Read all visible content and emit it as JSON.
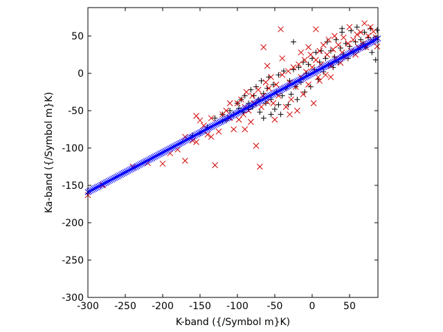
{
  "chart_data": {
    "type": "scatter",
    "title": "",
    "xlabel": "K-band ({/Symbol m}K)",
    "ylabel": "Ka-band ({/Symbol m}K)",
    "xlim": [
      -300,
      88
    ],
    "ylim": [
      -300,
      88
    ],
    "xticks": [
      -300,
      -250,
      -200,
      -150,
      -100,
      -50,
      0,
      50
    ],
    "yticks": [
      -300,
      -250,
      -200,
      -150,
      -100,
      -50,
      0,
      50
    ],
    "xtick_labels": [
      "-300",
      "-250",
      "-200",
      "-150",
      "-100",
      "-50",
      "0",
      "50"
    ],
    "ytick_labels": [
      "-300",
      "-250",
      "-200",
      "-150",
      "-100",
      "-50",
      "0",
      "50"
    ],
    "grid": false,
    "legend": "none",
    "fit": {
      "slope": 0.53,
      "intercept": 0
    },
    "series": [
      {
        "marker": "plus",
        "color": "#000000",
        "points": [
          [
            -160,
            -83
          ],
          [
            -150,
            -80
          ],
          [
            -140,
            -72
          ],
          [
            -120,
            -64
          ],
          [
            -115,
            -63
          ],
          [
            -105,
            -55
          ],
          [
            -100,
            -40
          ],
          [
            -98,
            -47
          ],
          [
            -95,
            -35
          ],
          [
            -92,
            -52
          ],
          [
            -90,
            -30
          ],
          [
            -85,
            -40
          ],
          [
            -82,
            -22
          ],
          [
            -80,
            -45
          ],
          [
            -78,
            -30
          ],
          [
            -75,
            -18
          ],
          [
            -72,
            -35
          ],
          [
            -70,
            -52
          ],
          [
            -68,
            -10
          ],
          [
            -65,
            -27
          ],
          [
            -62,
            -40
          ],
          [
            -60,
            -20
          ],
          [
            -58,
            -5
          ],
          [
            -55,
            -35
          ],
          [
            -52,
            -15
          ],
          [
            -50,
            -48
          ],
          [
            -48,
            -25
          ],
          [
            -45,
            -2
          ],
          [
            -42,
            -55
          ],
          [
            -40,
            -30
          ],
          [
            -38,
            3
          ],
          [
            -35,
            -20
          ],
          [
            -32,
            -42
          ],
          [
            -30,
            -10
          ],
          [
            -28,
            -28
          ],
          [
            -25,
            5
          ],
          [
            -22,
            -18
          ],
          [
            -20,
            -35
          ],
          [
            -18,
            8
          ],
          [
            -15,
            -12
          ],
          [
            -12,
            15
          ],
          [
            -10,
            -25
          ],
          [
            -8,
            0
          ],
          [
            -5,
            12
          ],
          [
            -2,
            -18
          ],
          [
            0,
            20
          ],
          [
            3,
            5
          ],
          [
            5,
            28
          ],
          [
            8,
            -8
          ],
          [
            10,
            15
          ],
          [
            12,
            30
          ],
          [
            15,
            2
          ],
          [
            18,
            20
          ],
          [
            20,
            42
          ],
          [
            22,
            12
          ],
          [
            25,
            30
          ],
          [
            28,
            8
          ],
          [
            30,
            22
          ],
          [
            32,
            45
          ],
          [
            35,
            15
          ],
          [
            38,
            34
          ],
          [
            40,
            55
          ],
          [
            42,
            25
          ],
          [
            45,
            40
          ],
          [
            48,
            20
          ],
          [
            50,
            36
          ],
          [
            52,
            57
          ],
          [
            55,
            28
          ],
          [
            58,
            42
          ],
          [
            60,
            62
          ],
          [
            62,
            32
          ],
          [
            65,
            45
          ],
          [
            68,
            40
          ],
          [
            70,
            55
          ],
          [
            72,
            35
          ],
          [
            75,
            48
          ],
          [
            78,
            60
          ],
          [
            80,
            28
          ],
          [
            82,
            45
          ],
          [
            85,
            18
          ],
          [
            87,
            58
          ],
          [
            -25,
            42
          ],
          [
            40,
            60
          ],
          [
            -110,
            -50
          ],
          [
            -130,
            -60
          ],
          [
            -45,
            -42
          ],
          [
            -120,
            -55
          ],
          [
            -55,
            -55
          ],
          [
            -65,
            -60
          ],
          [
            -85,
            -48
          ]
        ]
      },
      {
        "marker": "cross",
        "color": "#d40000",
        "points": [
          [
            -300,
            -163
          ],
          [
            -280,
            -150
          ],
          [
            -240,
            -125
          ],
          [
            -220,
            -120
          ],
          [
            -200,
            -121
          ],
          [
            -190,
            -107
          ],
          [
            -180,
            -102
          ],
          [
            -170,
            -117
          ],
          [
            -160,
            -90
          ],
          [
            -155,
            -92
          ],
          [
            -155,
            -57
          ],
          [
            -150,
            -63
          ],
          [
            -145,
            -70
          ],
          [
            -140,
            -82
          ],
          [
            -135,
            -60
          ],
          [
            -130,
            -123
          ],
          [
            -125,
            -78
          ],
          [
            -120,
            -55
          ],
          [
            -115,
            -50
          ],
          [
            -110,
            -60
          ],
          [
            -105,
            -75
          ],
          [
            -100,
            -40
          ],
          [
            -98,
            -62
          ],
          [
            -95,
            -35
          ],
          [
            -92,
            -55
          ],
          [
            -90,
            -45
          ],
          [
            -88,
            -25
          ],
          [
            -85,
            -50
          ],
          [
            -82,
            -65
          ],
          [
            -80,
            -30
          ],
          [
            -78,
            -40
          ],
          [
            -75,
            -97
          ],
          [
            -72,
            -22
          ],
          [
            -70,
            -125
          ],
          [
            -68,
            -45
          ],
          [
            -66,
            -30
          ],
          [
            -65,
            35
          ],
          [
            -62,
            -12
          ],
          [
            -60,
            -38
          ],
          [
            -58,
            -20
          ],
          [
            -55,
            -5
          ],
          [
            -52,
            -40
          ],
          [
            -50,
            -62
          ],
          [
            -48,
            -15
          ],
          [
            -45,
            -30
          ],
          [
            -42,
            59
          ],
          [
            -40,
            -2
          ],
          [
            -38,
            -20
          ],
          [
            -35,
            -45
          ],
          [
            -32,
            3
          ],
          [
            -30,
            -12
          ],
          [
            -28,
            -35
          ],
          [
            -25,
            8
          ],
          [
            -22,
            -18
          ],
          [
            -20,
            -50
          ],
          [
            -18,
            12
          ],
          [
            -15,
            -5
          ],
          [
            -12,
            -28
          ],
          [
            -10,
            18
          ],
          [
            -8,
            2
          ],
          [
            -5,
            -15
          ],
          [
            -2,
            25
          ],
          [
            0,
            8
          ],
          [
            2,
            -40
          ],
          [
            5,
            59
          ],
          [
            5,
            18
          ],
          [
            8,
            -5
          ],
          [
            10,
            30
          ],
          [
            12,
            12
          ],
          [
            15,
            38
          ],
          [
            18,
            -2
          ],
          [
            20,
            25
          ],
          [
            22,
            45
          ],
          [
            25,
            10
          ],
          [
            28,
            32
          ],
          [
            30,
            50
          ],
          [
            32,
            20
          ],
          [
            35,
            38
          ],
          [
            38,
            14
          ],
          [
            40,
            28
          ],
          [
            42,
            48
          ],
          [
            45,
            22
          ],
          [
            48,
            40
          ],
          [
            50,
            62
          ],
          [
            52,
            30
          ],
          [
            55,
            45
          ],
          [
            58,
            25
          ],
          [
            60,
            52
          ],
          [
            62,
            35
          ],
          [
            65,
            55
          ],
          [
            68,
            40
          ],
          [
            70,
            67
          ],
          [
            72,
            35
          ],
          [
            75,
            50
          ],
          [
            78,
            62
          ],
          [
            80,
            42
          ],
          [
            82,
            56
          ],
          [
            85,
            48
          ],
          [
            87,
            36
          ],
          [
            -15,
            28
          ],
          [
            -5,
            35
          ],
          [
            10,
            -10
          ],
          [
            25,
            -5
          ],
          [
            -60,
            10
          ],
          [
            -40,
            20
          ],
          [
            -30,
            -55
          ],
          [
            -90,
            -75
          ],
          [
            -110,
            -40
          ],
          [
            -135,
            -85
          ],
          [
            -170,
            -85
          ]
        ]
      },
      {
        "marker": "cross",
        "color": "#0000ff",
        "name": "",
        "points_from_fit": {
          "x_start": -300,
          "x_end": 88,
          "step": 2
        }
      }
    ]
  }
}
